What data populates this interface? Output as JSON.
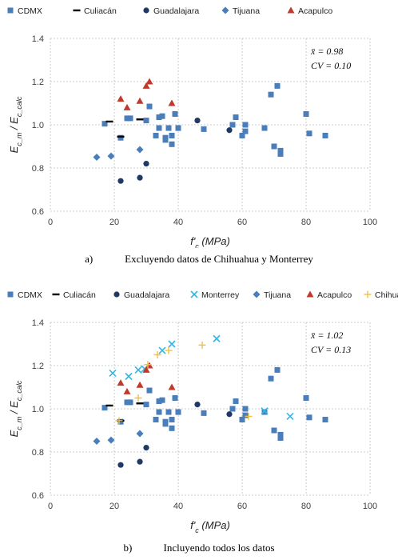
{
  "colors": {
    "CDMX": "#4a7ebb",
    "Culiacán": "#000000",
    "Guadalajara": "#1f3864",
    "Monterrey": "#33b6e6",
    "Tijuana": "#4a7ebb",
    "Acapulco": "#c0392b",
    "Chihuahua": "#f0c040",
    "grid": "#bfbfbf",
    "axis_text": "#404040"
  },
  "captions": [
    {
      "letter": "a)",
      "text": "Excluyendo datos de Chihuahua y Monterrey"
    },
    {
      "letter": "b)",
      "text": "Incluyendo todos los datos"
    }
  ],
  "chart_data": [
    {
      "type": "scatter",
      "xlabel": "f'c (MPa)",
      "ylabel": "Ec_m / Ec_calc",
      "xlim": [
        0,
        100
      ],
      "ylim": [
        0.6,
        1.4
      ],
      "xticks": [
        "0",
        "20",
        "40",
        "60",
        "80",
        "100"
      ],
      "yticks": [
        "0.6",
        "0.8",
        "1.0",
        "1.2",
        "1.4"
      ],
      "grid": true,
      "legend": "top",
      "stats": [
        "x̄ = 0.98",
        "CV = 0.10"
      ],
      "series": [
        {
          "name": "CDMX",
          "marker": "square",
          "x": [
            17,
            22,
            24,
            25,
            30,
            31,
            33,
            34,
            34,
            35,
            36,
            36,
            37,
            38,
            38,
            39,
            40,
            40,
            48,
            57,
            58,
            60,
            61,
            61,
            67,
            69,
            70,
            71,
            72,
            72,
            80,
            81,
            86
          ],
          "y": [
            1.005,
            0.94,
            1.03,
            1.03,
            1.02,
            1.085,
            0.95,
            0.985,
            1.035,
            1.04,
            0.94,
            0.93,
            0.985,
            0.95,
            0.91,
            1.05,
            0.985,
            0.985,
            0.98,
            1.0,
            1.035,
            0.95,
            0.97,
            1.0,
            0.985,
            1.14,
            0.9,
            1.18,
            0.865,
            0.88,
            1.05,
            0.96,
            0.95
          ]
        },
        {
          "name": "Culiacán",
          "marker": "dash",
          "x": [
            18.5,
            22,
            28
          ],
          "y": [
            1.015,
            0.945,
            1.025
          ]
        },
        {
          "name": "Guadalajara",
          "marker": "circle",
          "x": [
            22,
            28,
            30,
            46,
            56
          ],
          "y": [
            0.74,
            0.755,
            0.82,
            1.02,
            0.975
          ]
        },
        {
          "name": "Tijuana",
          "marker": "diamond",
          "x": [
            14.5,
            19,
            28
          ],
          "y": [
            0.85,
            0.855,
            0.885
          ]
        },
        {
          "name": "Acapulco",
          "marker": "triangle",
          "x": [
            22,
            24,
            28,
            30,
            31,
            38
          ],
          "y": [
            1.12,
            1.08,
            1.11,
            1.18,
            1.2,
            1.1
          ]
        }
      ]
    },
    {
      "type": "scatter",
      "xlabel": "f'c (MPa)",
      "ylabel": "Ec_m / Ec_calc",
      "xlim": [
        0,
        100
      ],
      "ylim": [
        0.6,
        1.4
      ],
      "xticks": [
        "0",
        "20",
        "40",
        "60",
        "80",
        "100"
      ],
      "yticks": [
        "0.6",
        "0.8",
        "1.0",
        "1.2",
        "1.4"
      ],
      "grid": true,
      "legend": "top",
      "stats": [
        "x̄ = 1.02",
        "CV = 0.13"
      ],
      "series": [
        {
          "name": "CDMX",
          "marker": "square",
          "x": [
            17,
            22,
            24,
            25,
            30,
            31,
            33,
            34,
            34,
            35,
            36,
            36,
            37,
            38,
            38,
            39,
            40,
            40,
            48,
            57,
            58,
            60,
            61,
            61,
            67,
            69,
            70,
            71,
            72,
            72,
            80,
            81,
            86
          ],
          "y": [
            1.005,
            0.94,
            1.03,
            1.03,
            1.02,
            1.085,
            0.95,
            0.985,
            1.035,
            1.04,
            0.94,
            0.93,
            0.985,
            0.95,
            0.91,
            1.05,
            0.985,
            0.985,
            0.98,
            1.0,
            1.035,
            0.95,
            0.97,
            1.0,
            0.985,
            1.14,
            0.9,
            1.18,
            0.865,
            0.88,
            1.05,
            0.96,
            0.95
          ]
        },
        {
          "name": "Culiacán",
          "marker": "dash",
          "x": [
            18.5,
            22,
            28
          ],
          "y": [
            1.015,
            0.945,
            1.025
          ]
        },
        {
          "name": "Guadalajara",
          "marker": "circle",
          "x": [
            22,
            28,
            30,
            46,
            56
          ],
          "y": [
            0.74,
            0.755,
            0.82,
            1.02,
            0.975
          ]
        },
        {
          "name": "Monterrey",
          "marker": "x",
          "x": [
            19.5,
            24.5,
            27.5,
            29.5,
            35,
            38,
            52,
            67,
            75
          ],
          "y": [
            1.165,
            1.15,
            1.18,
            1.185,
            1.27,
            1.3,
            1.325,
            0.99,
            0.965
          ]
        },
        {
          "name": "Tijuana",
          "marker": "diamond",
          "x": [
            14.5,
            19,
            28
          ],
          "y": [
            0.85,
            0.855,
            0.885
          ]
        },
        {
          "name": "Acapulco",
          "marker": "triangle",
          "x": [
            22,
            24,
            28,
            30,
            31,
            38
          ],
          "y": [
            1.12,
            1.08,
            1.11,
            1.18,
            1.2,
            1.1
          ]
        },
        {
          "name": "Chihuahua",
          "marker": "plus",
          "x": [
            21.5,
            27.5,
            30.5,
            33.5,
            37,
            47.5,
            62
          ],
          "y": [
            0.945,
            1.05,
            1.205,
            1.25,
            1.27,
            1.295,
            0.965
          ]
        }
      ]
    }
  ]
}
